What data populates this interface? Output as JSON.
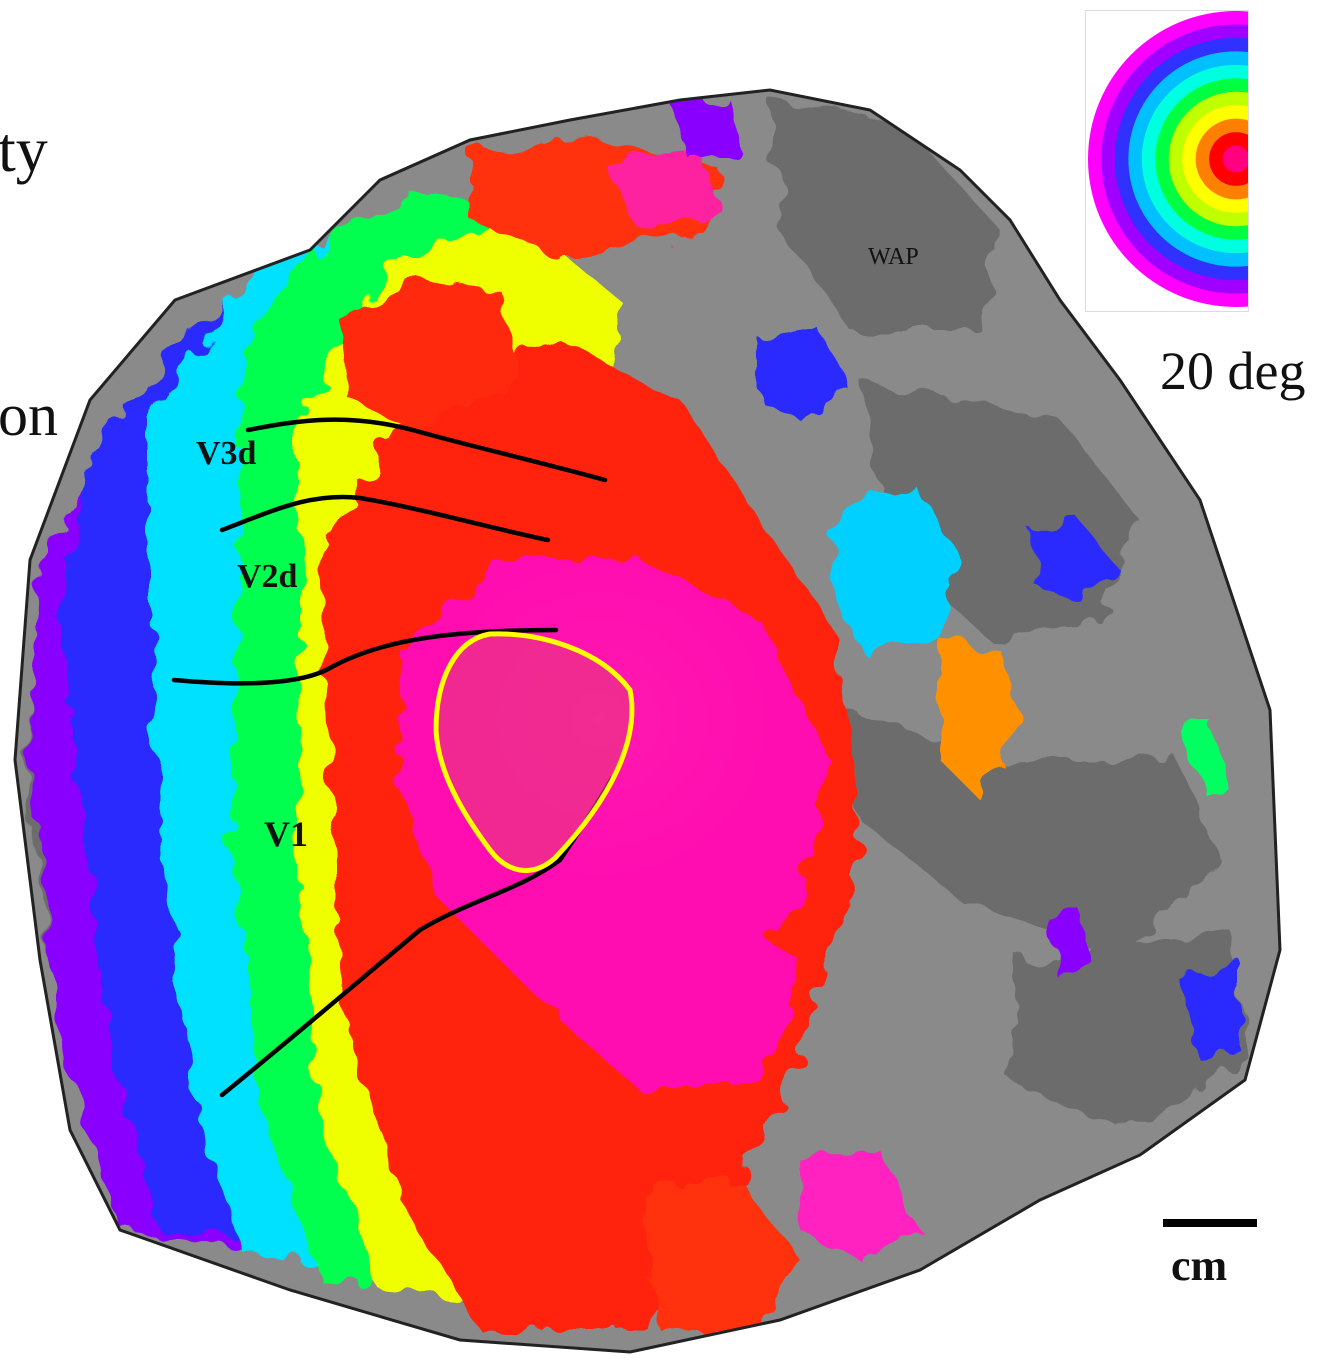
{
  "text_fragments": {
    "frag_1": "ty",
    "frag_2": "on"
  },
  "map": {
    "area_labels": {
      "v3d": "V3d",
      "v2d": "V2d",
      "v1": "V1",
      "wap": "WAP"
    },
    "colors": {
      "background_gray": "#8a8a8a",
      "dark_gray": "#6c6c6c",
      "boundary_line": "#000000",
      "roi_outline": "#ffff00",
      "roi_fill": "#e8387f"
    }
  },
  "legend": {
    "type": "eccentricity-colorwheel",
    "max_eccentricity_label": "20 deg",
    "ring_colors": [
      "#ff00ff",
      "#a000ff",
      "#3030ff",
      "#00c0ff",
      "#00ffe0",
      "#00ff40",
      "#c0ff00",
      "#ffff00",
      "#ff8000",
      "#ff0000",
      "#ff0080"
    ]
  },
  "scale": {
    "unit_label": "cm"
  }
}
